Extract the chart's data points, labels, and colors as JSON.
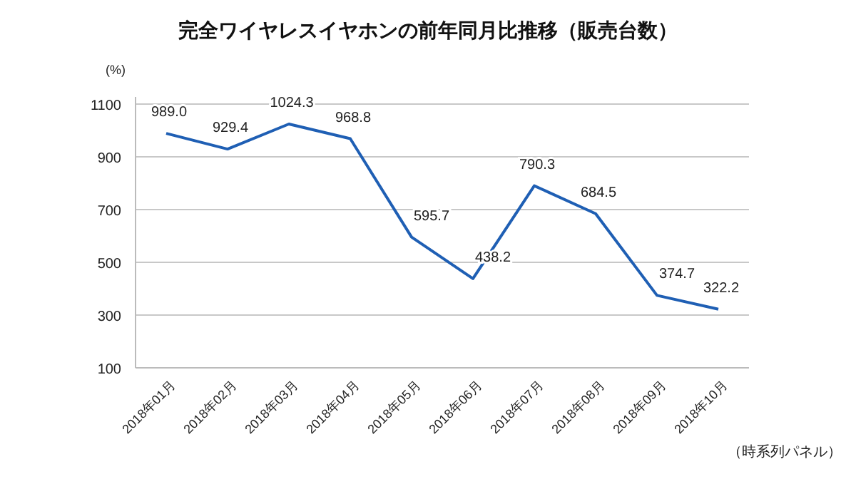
{
  "chart_data": {
    "type": "line",
    "title": "完全ワイヤレスイヤホンの前年同月比推移（販売台数）",
    "ylabel": "(%)",
    "categories": [
      "2018年01月",
      "2018年02月",
      "2018年03月",
      "2018年04月",
      "2018年05月",
      "2018年06月",
      "2018年07月",
      "2018年08月",
      "2018年09月",
      "2018年10月"
    ],
    "series": [
      {
        "color": "#1f5fb4",
        "values": [
          989.0,
          929.4,
          1024.3,
          968.8,
          595.7,
          438.2,
          790.3,
          684.5,
          374.7,
          322.2
        ]
      }
    ],
    "value_labels": [
      "989.0",
      "929.4",
      "1024.3",
      "968.8",
      "595.7",
      "438.2",
      "790.3",
      "684.5",
      "374.7",
      "322.2"
    ],
    "ylim": [
      100,
      1100
    ],
    "yticks": [
      100,
      300,
      500,
      700,
      900,
      1100
    ],
    "grid": "y",
    "marker": "none",
    "line_style": "solid",
    "annotations": [
      "（時系列パネル）"
    ]
  }
}
